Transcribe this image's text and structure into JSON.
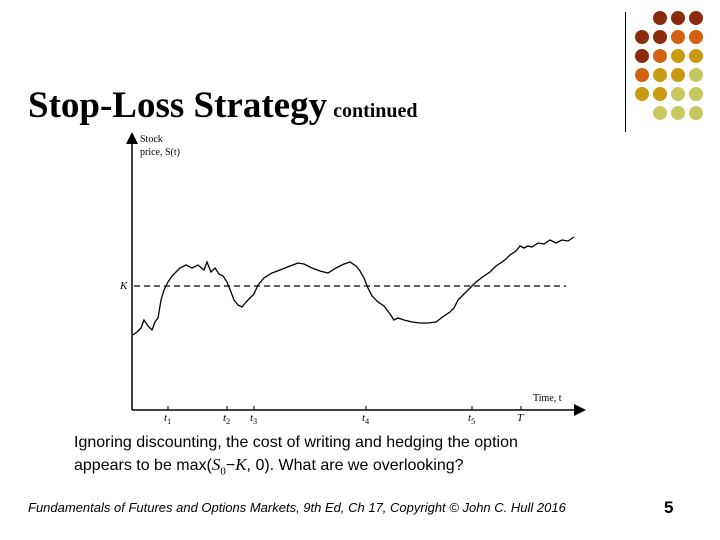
{
  "slide": {
    "title_main": "Stop-Loss Strategy",
    "title_sub": "continued",
    "footer": "Fundamentals of Futures and Options Markets, 9th Ed, Ch 17, Copyright © John C. Hull 2016",
    "page_number": "5"
  },
  "decor": {
    "dot_colors": [
      "#8b2a0c",
      "#d4610f",
      "#c99b12",
      "#c8c860"
    ]
  },
  "chart_data": {
    "type": "line",
    "ylabel_line1": "Stock",
    "ylabel_line2": "price, S(t)",
    "xlabel": "Time, t",
    "strike_label": "K",
    "strike_level": 0,
    "time_ticks": [
      {
        "label": "t",
        "sub": "1",
        "t": 1
      },
      {
        "label": "t",
        "sub": "2",
        "t": 2
      },
      {
        "label": "t",
        "sub": "3",
        "t": 3
      },
      {
        "label": "t",
        "sub": "4",
        "t": 4
      },
      {
        "label": "t",
        "sub": "5",
        "t": 5
      },
      {
        "label": "T",
        "sub": "",
        "t": 6
      }
    ]
  },
  "caption": {
    "line1": "Ignoring discounting, the cost of writing and hedging the option",
    "line2_before": "appears to be max(",
    "s_symbol": "S",
    "s_sub": "0",
    "minus": "−",
    "k_symbol": "K",
    "line2_after": ", 0). What are we overlooking?"
  }
}
